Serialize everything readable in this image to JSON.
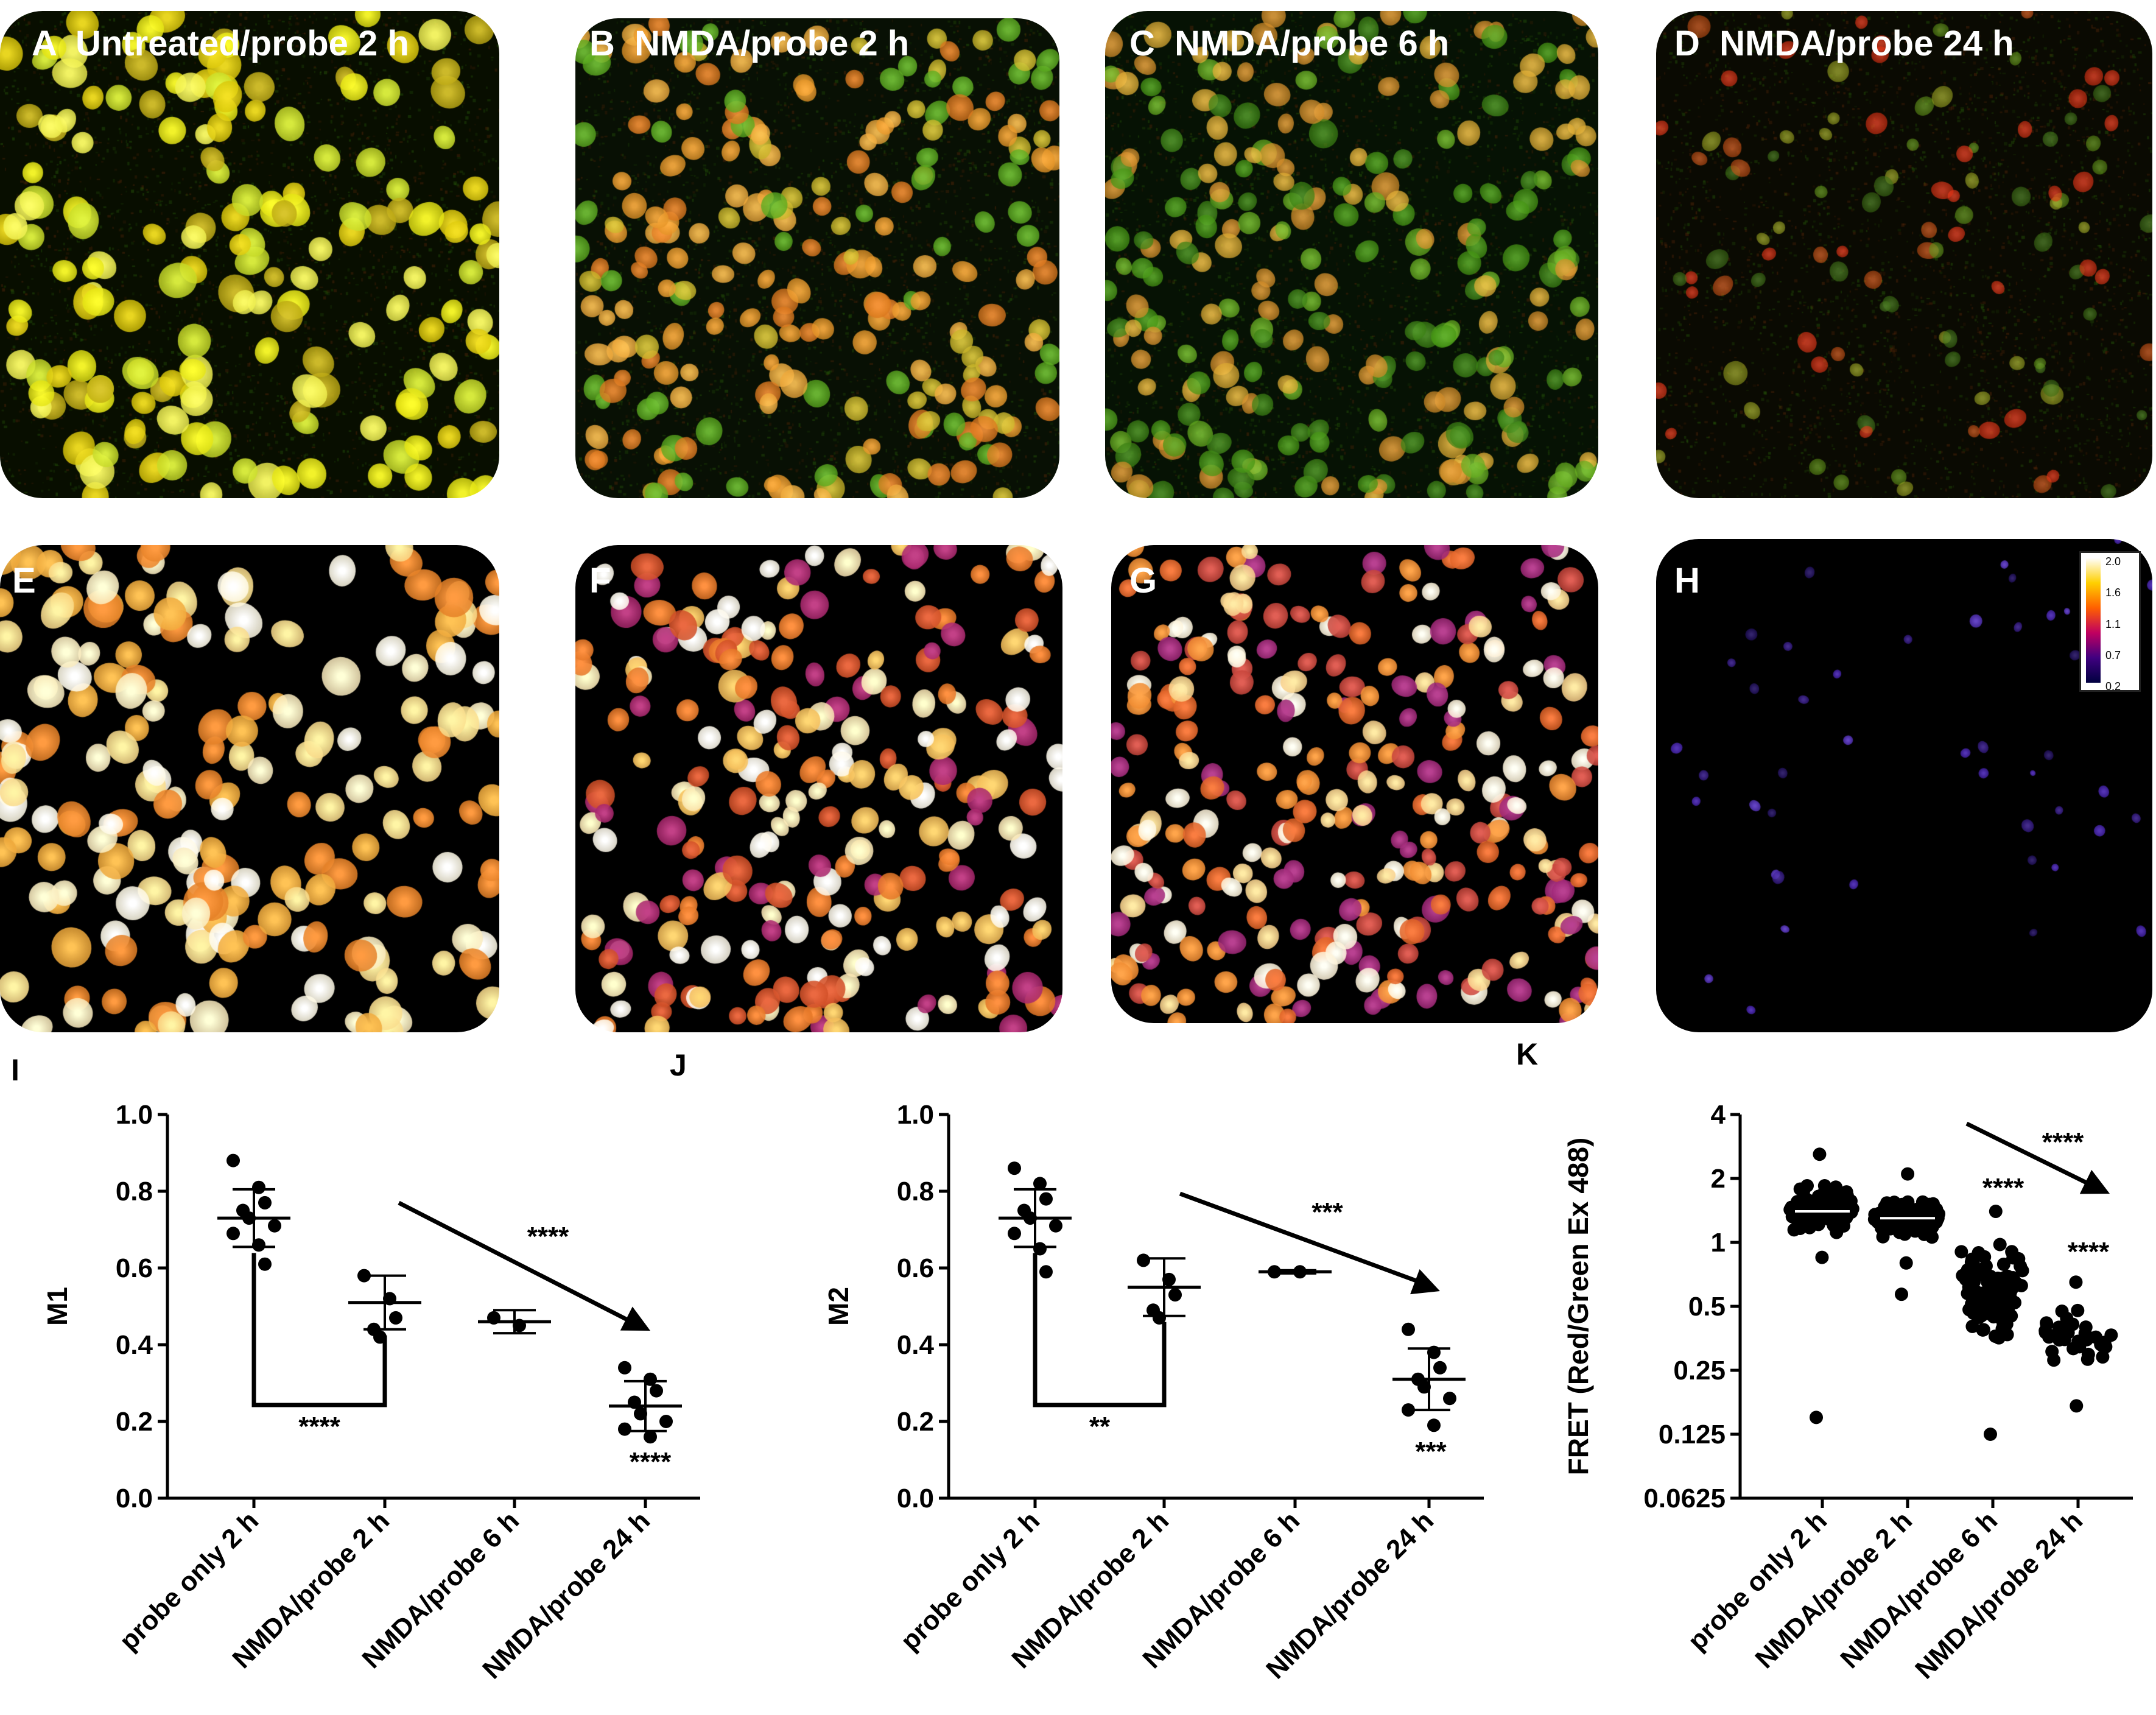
{
  "panels": [
    {
      "id": "A",
      "title": "Untreated/probe 2 h",
      "kind": "merge",
      "palette": "yellow"
    },
    {
      "id": "B",
      "title": "NMDA/probe 2 h",
      "kind": "merge",
      "palette": "orange-green"
    },
    {
      "id": "C",
      "title": "NMDA/probe 6 h",
      "kind": "merge",
      "palette": "green-orange"
    },
    {
      "id": "D",
      "title": "NMDA/probe 24 h",
      "kind": "merge",
      "palette": "red-sparse"
    },
    {
      "id": "E",
      "title": "",
      "kind": "fret",
      "palette": "hot-high"
    },
    {
      "id": "F",
      "title": "",
      "kind": "fret",
      "palette": "hot-mixed"
    },
    {
      "id": "G",
      "title": "",
      "kind": "fret",
      "palette": "hot-mid"
    },
    {
      "id": "H",
      "title": "",
      "kind": "fret",
      "palette": "blue-low"
    }
  ],
  "colorbar": {
    "ticks": [
      "2.0",
      "1.6",
      "1.1",
      "0.7",
      "0.2"
    ],
    "colors": [
      "#ffffff",
      "#ffd000",
      "#ff6000",
      "#c00060",
      "#400080",
      "#000040"
    ]
  },
  "chart_data": [
    {
      "panel": "I",
      "type": "scatter",
      "ylabel": "M1",
      "ylim": [
        0,
        1.0
      ],
      "yticks": [
        "0.0",
        "0.2",
        "0.4",
        "0.6",
        "0.8",
        "1.0"
      ],
      "categories": [
        "probe only 2 h",
        "NMDA/probe 2 h",
        "NMDA/probe 6 h",
        "NMDA/probe 24 h"
      ],
      "points": [
        [
          0.88,
          0.81,
          0.77,
          0.75,
          0.73,
          0.71,
          0.69,
          0.66,
          0.61
        ],
        [
          0.58,
          0.52,
          0.47,
          0.44,
          0.42
        ],
        [
          0.47,
          0.45
        ],
        [
          0.34,
          0.31,
          0.28,
          0.25,
          0.22,
          0.2,
          0.18,
          0.16
        ]
      ],
      "mean": [
        0.73,
        0.51,
        0.46,
        0.24
      ],
      "sd": [
        0.075,
        0.07,
        0.03,
        0.065
      ],
      "bracket": {
        "from": 0,
        "to": 1,
        "label": "****"
      },
      "arrow": {
        "from": 1,
        "to": 3,
        "label": "****"
      },
      "point_labels": [
        {
          "cat": 3,
          "label": "****"
        }
      ]
    },
    {
      "panel": "J",
      "type": "scatter",
      "ylabel": "M2",
      "ylim": [
        0,
        1.0
      ],
      "yticks": [
        "0.0",
        "0.2",
        "0.4",
        "0.6",
        "0.8",
        "1.0"
      ],
      "categories": [
        "probe only 2 h",
        "NMDA/probe 2 h",
        "NMDA/probe 6 h",
        "NMDA/probe 24 h"
      ],
      "points": [
        [
          0.86,
          0.82,
          0.78,
          0.75,
          0.73,
          0.71,
          0.69,
          0.65,
          0.59
        ],
        [
          0.62,
          0.57,
          0.53,
          0.49,
          0.47
        ],
        [
          0.59,
          0.59
        ],
        [
          0.44,
          0.38,
          0.34,
          0.31,
          0.29,
          0.26,
          0.23,
          0.19
        ]
      ],
      "mean": [
        0.73,
        0.55,
        0.59,
        0.31
      ],
      "sd": [
        0.075,
        0.075,
        0.004,
        0.08
      ],
      "bracket": {
        "from": 0,
        "to": 1,
        "label": "**"
      },
      "arrow": {
        "from": 1,
        "to": 3,
        "label": "***"
      },
      "point_labels": [
        {
          "cat": 3,
          "label": "***"
        }
      ]
    },
    {
      "panel": "K",
      "type": "scatter",
      "ylabel": "FRET (Red/Green Ex 488)",
      "yscale": "log2",
      "ylim": [
        0.0625,
        4
      ],
      "yticks": [
        "0.0625",
        "0.125",
        "0.25",
        "0.5",
        "1",
        "2",
        "4"
      ],
      "categories": [
        "probe only 2 h",
        "NMDA/probe 2 h",
        "NMDA/probe 6 h",
        "NMDA/probe 24 h"
      ],
      "distribution": [
        {
          "median": 1.35,
          "spread": 0.38,
          "n": 110,
          "max": 2.6,
          "min": 0.85,
          "outliers": [
            0.15
          ]
        },
        {
          "median": 1.3,
          "spread": 0.3,
          "n": 110,
          "max": 2.1,
          "min": 0.8,
          "outliers": [
            0.57
          ]
        },
        {
          "median": 0.85,
          "spread": 0.75,
          "n": 110,
          "max": 1.4,
          "min": 0.125,
          "outliers": []
        },
        {
          "median": 0.38,
          "spread": 0.5,
          "n": 35,
          "max": 0.65,
          "min": 0.17,
          "outliers": []
        }
      ],
      "mean": [
        1.4,
        1.3,
        null,
        null
      ],
      "arrow": {
        "from": 2,
        "to": 3,
        "label": "****"
      },
      "point_labels": [
        {
          "cat": 2,
          "label": "****"
        },
        {
          "cat": 3,
          "label": "****"
        }
      ]
    }
  ]
}
